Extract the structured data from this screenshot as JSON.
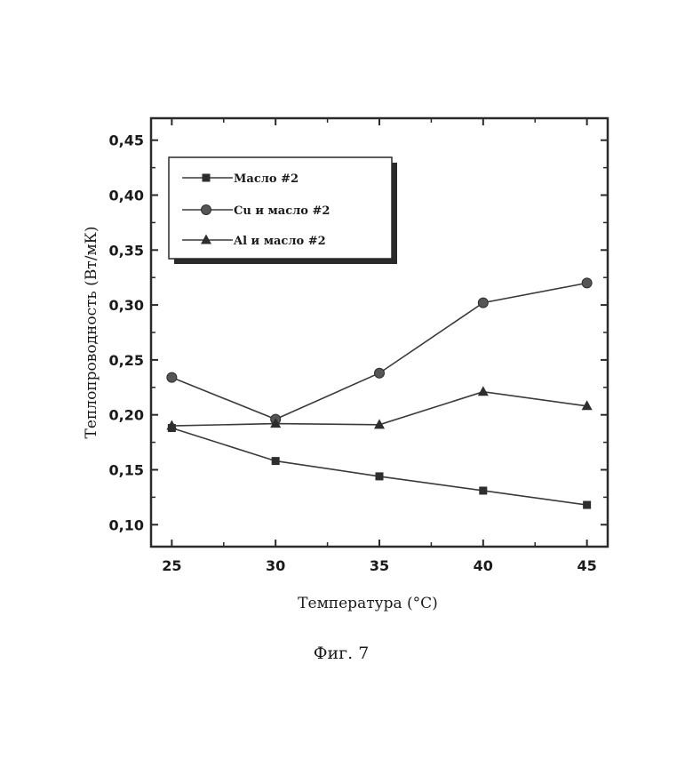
{
  "chart_data": {
    "type": "line",
    "title": "",
    "xlabel": "Температура (°C)",
    "ylabel": "Теплопроводность (Вт/мК)",
    "x": [
      25,
      30,
      35,
      40,
      45
    ],
    "x_tick_labels": [
      "25",
      "30",
      "35",
      "40",
      "45"
    ],
    "xlim": [
      24,
      46
    ],
    "y_ticks": [
      0.1,
      0.15,
      0.2,
      0.25,
      0.3,
      0.35,
      0.4,
      0.45
    ],
    "y_tick_labels": [
      "0,10",
      "0,15",
      "0,20",
      "0,25",
      "0,30",
      "0,35",
      "0,40",
      "0,45"
    ],
    "ylim": [
      0.08,
      0.47
    ],
    "grid": false,
    "legend_position": "top-left",
    "series": [
      {
        "name": "Масло #2",
        "marker": "square",
        "values": [
          0.188,
          0.158,
          0.144,
          0.131,
          0.118
        ]
      },
      {
        "name": "Cu и масло #2",
        "marker": "circle",
        "values": [
          0.234,
          0.196,
          0.238,
          0.302,
          0.32
        ]
      },
      {
        "name": "Al и масло #2",
        "marker": "triangle",
        "values": [
          0.19,
          0.192,
          0.191,
          0.221,
          0.208
        ]
      }
    ]
  },
  "caption": "Фиг. 7",
  "colors": {
    "line": "#3a3a3a",
    "marker": "#2e2e2e",
    "text": "#1a1a1a"
  }
}
